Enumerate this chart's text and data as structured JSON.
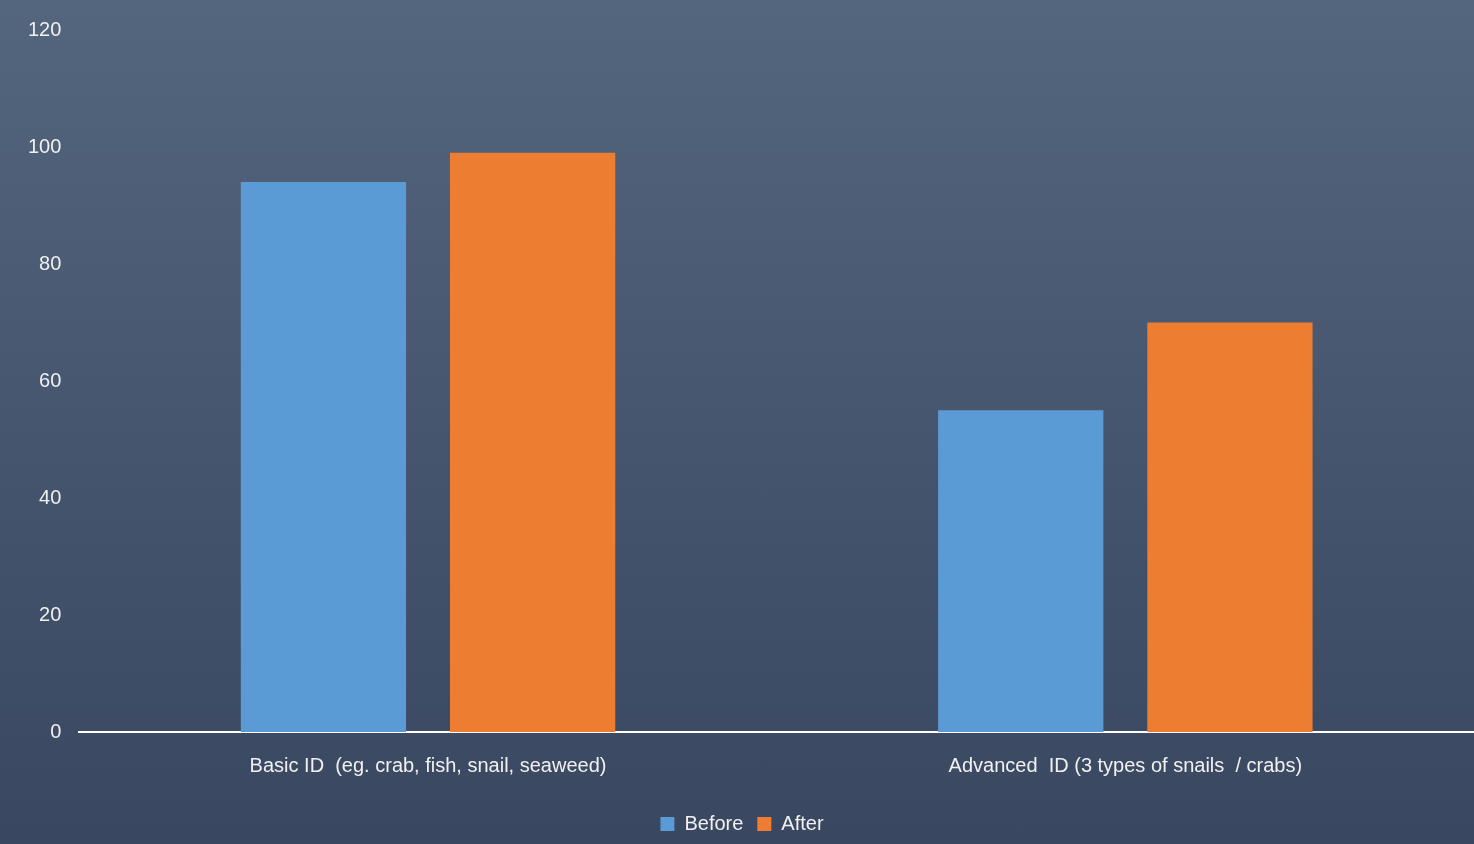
{
  "chart_data": {
    "type": "bar",
    "categories": [
      "Basic ID  (eg. crab, fish, snail, seaweed)",
      "Advanced  ID (3 types of snails  / crabs)"
    ],
    "series": [
      {
        "name": "Before",
        "color": "#5b9bd5",
        "values": [
          94,
          55
        ]
      },
      {
        "name": "After",
        "color": "#ed7d31",
        "values": [
          99,
          70
        ]
      }
    ],
    "ylim": [
      0,
      120
    ],
    "yticks": [
      0,
      20,
      40,
      60,
      80,
      100,
      120
    ],
    "grid": false,
    "legend": "bottom"
  }
}
